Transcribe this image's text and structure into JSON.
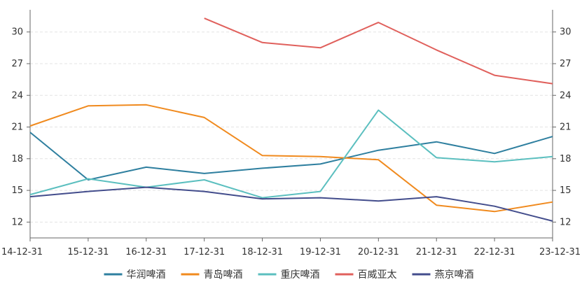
{
  "chart_data": {
    "type": "line",
    "x": [
      "14-12-31",
      "15-12-31",
      "16-12-31",
      "17-12-31",
      "18-12-31",
      "19-12-31",
      "20-12-31",
      "21-12-31",
      "22-12-31",
      "23-12-31"
    ],
    "y_ticks": [
      12,
      15,
      18,
      21,
      24,
      27,
      30
    ],
    "ylim": [
      10.5,
      32.1
    ],
    "grid": true,
    "secondary_y_axis": true,
    "legend_position": "bottom",
    "series": [
      {
        "name": "华润啤酒",
        "color": "#2e7f9f",
        "values": [
          20.5,
          16.0,
          17.2,
          16.6,
          17.1,
          17.5,
          18.8,
          19.6,
          18.5,
          20.1
        ]
      },
      {
        "name": "青岛啤酒",
        "color": "#f08a1e",
        "values": [
          21.1,
          23.0,
          23.1,
          21.9,
          18.3,
          18.2,
          17.9,
          13.6,
          13.0,
          13.9
        ]
      },
      {
        "name": "重庆啤酒",
        "color": "#5bbfbf",
        "values": [
          14.6,
          16.1,
          15.3,
          16.0,
          14.3,
          14.9,
          22.6,
          18.1,
          17.7,
          18.2
        ]
      },
      {
        "name": "百威亚太",
        "color": "#e0605c",
        "values": [
          null,
          null,
          null,
          31.3,
          29.0,
          28.5,
          30.9,
          28.3,
          25.9,
          25.1
        ]
      },
      {
        "name": "燕京啤酒",
        "color": "#434d8c",
        "values": [
          14.4,
          14.9,
          15.3,
          14.9,
          14.2,
          14.3,
          14.0,
          14.4,
          13.5,
          12.1
        ]
      }
    ]
  }
}
